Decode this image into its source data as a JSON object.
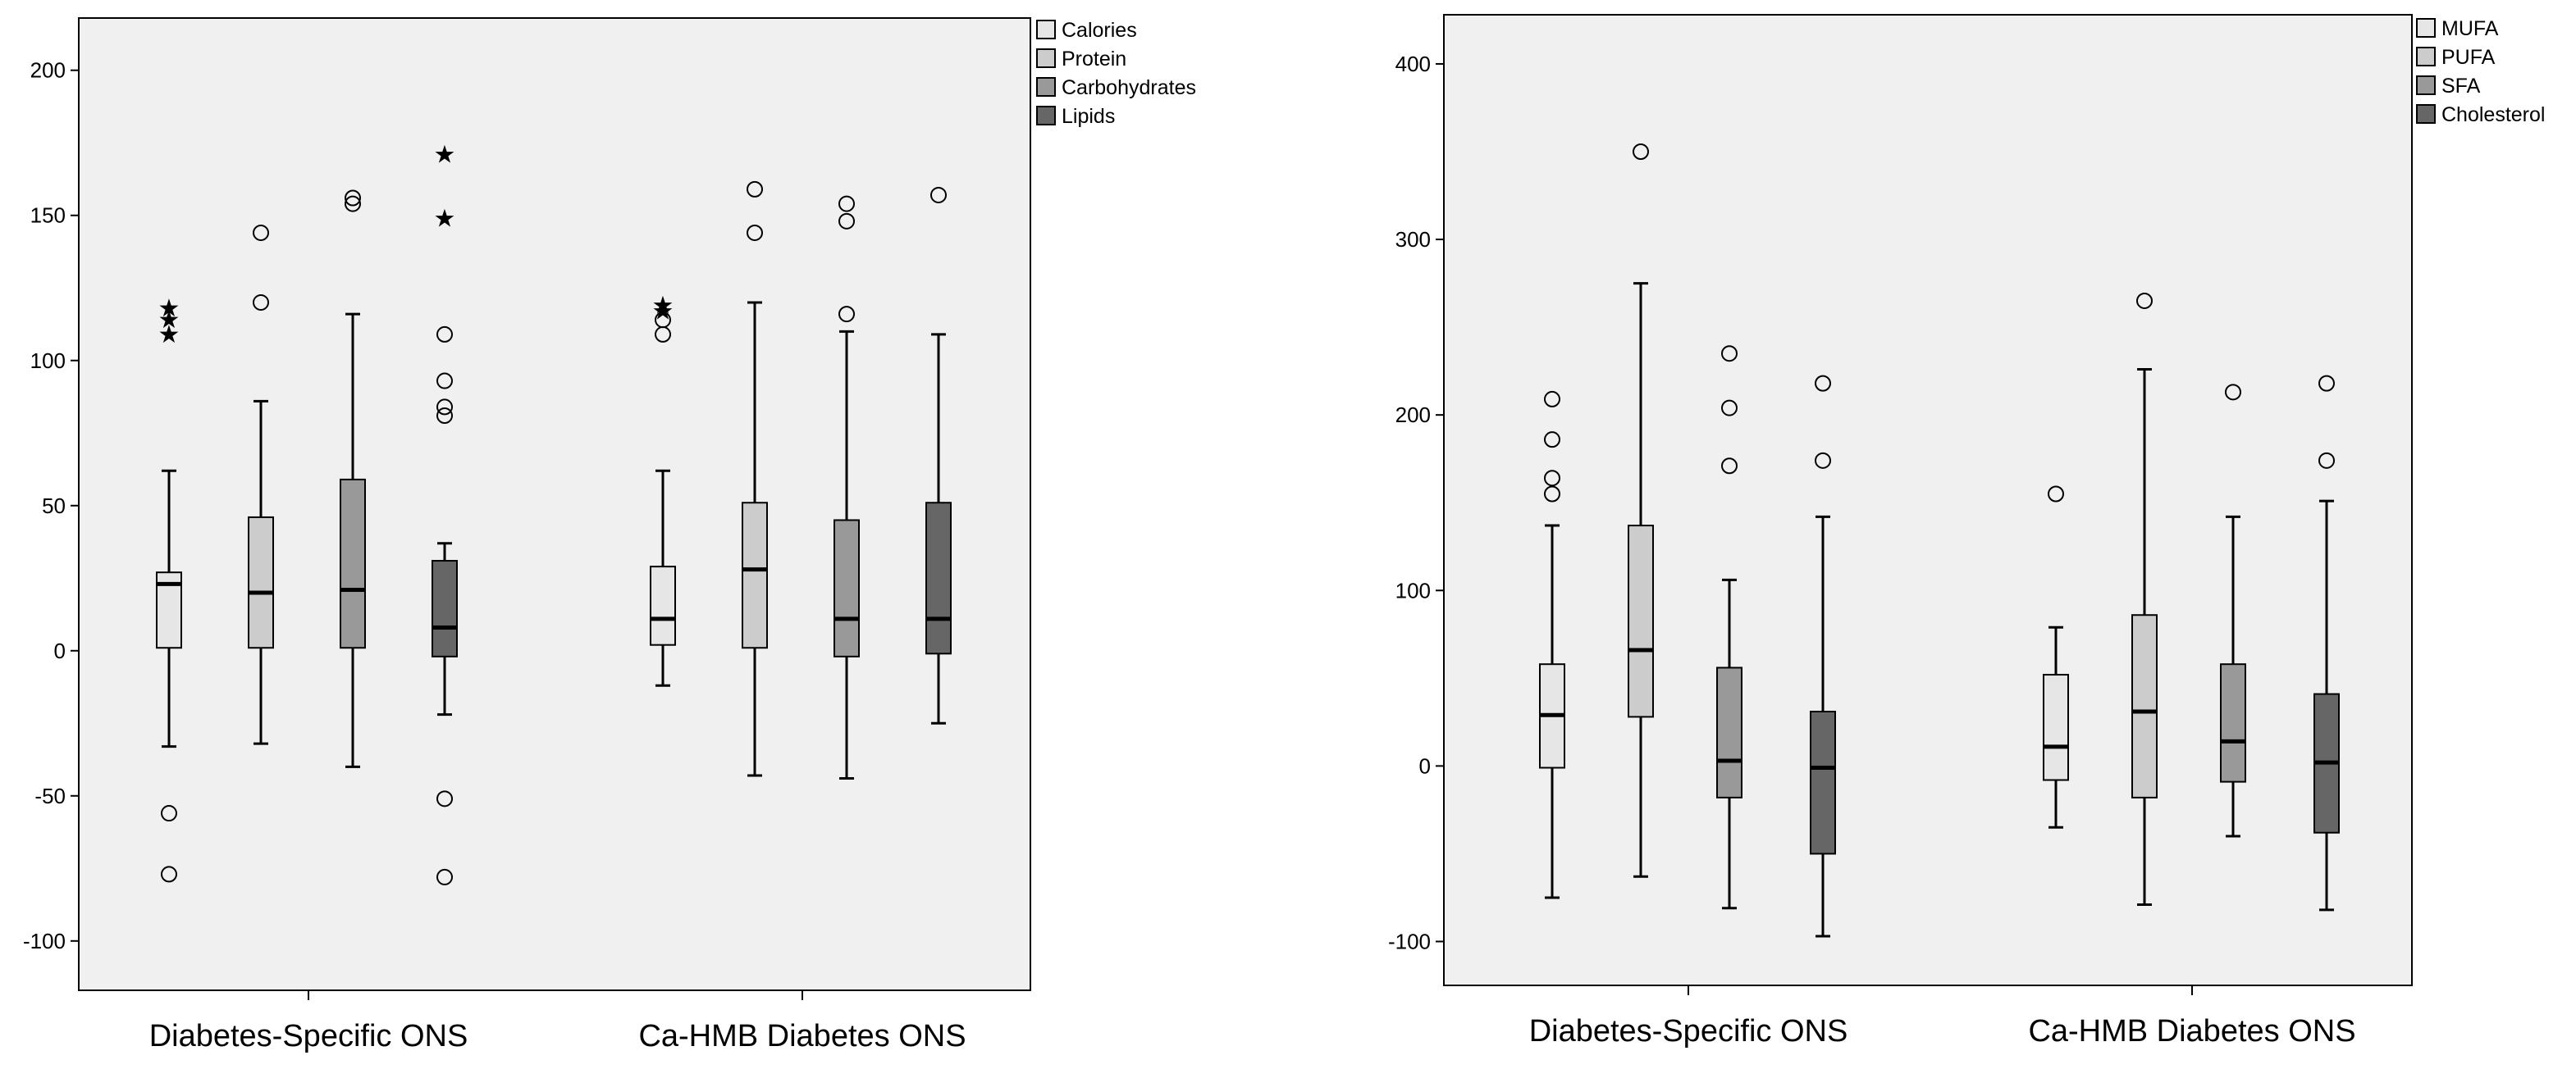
{
  "chart_data": [
    {
      "type": "boxplot",
      "title": "",
      "xlabel": "",
      "ylabel": "",
      "ylim": [
        -117,
        218
      ],
      "yticks": [
        200,
        150,
        100,
        50,
        0,
        -50,
        -100
      ],
      "ytick_labels": [
        "200",
        "150",
        "100",
        "50",
        "0",
        "-50",
        "-100"
      ],
      "categories": [
        "Diabetes-Specific ONS",
        "Ca-HMB Diabetes ONS"
      ],
      "legend": {
        "position": "top-right",
        "entries": [
          "Calories",
          "Protein",
          "Carbohydrates",
          "Lipids"
        ]
      },
      "series": [
        {
          "name": "Calories",
          "color": "#e6e6e6",
          "boxes": [
            {
              "whisker_low": -33,
              "q1": 1,
              "median": 23,
              "q3": 27,
              "whisker_high": 62,
              "outliers": [
                -56,
                -77
              ],
              "extremes": [
                118,
                114,
                109
              ]
            },
            {
              "whisker_low": -12,
              "q1": 2,
              "median": 11,
              "q3": 29,
              "whisker_high": 62,
              "outliers": [
                109,
                114
              ],
              "extremes": [
                119,
                117
              ]
            }
          ]
        },
        {
          "name": "Protein",
          "color": "#cccccc",
          "boxes": [
            {
              "whisker_low": -32,
              "q1": 1,
              "median": 20,
              "q3": 46,
              "whisker_high": 86,
              "outliers": [
                144,
                120
              ],
              "extremes": []
            },
            {
              "whisker_low": -43,
              "q1": 1,
              "median": 28,
              "q3": 51,
              "whisker_high": 120,
              "outliers": [
                159,
                144
              ],
              "extremes": []
            }
          ]
        },
        {
          "name": "Carbohydrates",
          "color": "#999999",
          "boxes": [
            {
              "whisker_low": -40,
              "q1": 1,
              "median": 21,
              "q3": 59,
              "whisker_high": 116,
              "outliers": [
                156,
                154
              ],
              "extremes": []
            },
            {
              "whisker_low": -44,
              "q1": -2,
              "median": 11,
              "q3": 45,
              "whisker_high": 110,
              "outliers": [
                154,
                148,
                116
              ],
              "extremes": []
            }
          ]
        },
        {
          "name": "Lipids",
          "color": "#666666",
          "boxes": [
            {
              "whisker_low": -22,
              "q1": -2,
              "median": 8,
              "q3": 31,
              "whisker_high": 37,
              "outliers": [
                109,
                93,
                84,
                81,
                -51,
                -78
              ],
              "extremes": [
                171,
                149
              ]
            },
            {
              "whisker_low": -25,
              "q1": -1,
              "median": 11,
              "q3": 51,
              "whisker_high": 109,
              "outliers": [
                157
              ],
              "extremes": []
            }
          ]
        }
      ]
    },
    {
      "type": "boxplot",
      "title": "",
      "xlabel": "",
      "ylabel": "",
      "ylim": [
        -125,
        428
      ],
      "yticks": [
        400,
        300,
        200,
        100,
        0,
        -100
      ],
      "ytick_labels": [
        "400",
        "300",
        "200",
        "100",
        "0",
        "-100"
      ],
      "categories": [
        "Diabetes-Specific ONS",
        "Ca-HMB Diabetes ONS"
      ],
      "legend": {
        "position": "top-right",
        "entries": [
          "MUFA",
          "PUFA",
          "SFA",
          "Cholesterol"
        ]
      },
      "series": [
        {
          "name": "MUFA",
          "color": "#e6e6e6",
          "boxes": [
            {
              "whisker_low": -75,
              "q1": -1,
              "median": 29,
              "q3": 58,
              "whisker_high": 137,
              "outliers": [
                209,
                186,
                164,
                155
              ],
              "extremes": []
            },
            {
              "whisker_low": -35,
              "q1": -8,
              "median": 11,
              "q3": 52,
              "whisker_high": 79,
              "outliers": [
                155
              ],
              "extremes": []
            }
          ]
        },
        {
          "name": "PUFA",
          "color": "#cccccc",
          "boxes": [
            {
              "whisker_low": -63,
              "q1": 28,
              "median": 66,
              "q3": 137,
              "whisker_high": 275,
              "outliers": [
                350
              ],
              "extremes": []
            },
            {
              "whisker_low": -79,
              "q1": -18,
              "median": 31,
              "q3": 86,
              "whisker_high": 226,
              "outliers": [
                265
              ],
              "extremes": []
            }
          ]
        },
        {
          "name": "SFA",
          "color": "#999999",
          "boxes": [
            {
              "whisker_low": -81,
              "q1": -18,
              "median": 3,
              "q3": 56,
              "whisker_high": 106,
              "outliers": [
                235,
                204,
                171
              ],
              "extremes": []
            },
            {
              "whisker_low": -40,
              "q1": -9,
              "median": 14,
              "q3": 58,
              "whisker_high": 142,
              "outliers": [
                213
              ],
              "extremes": []
            }
          ]
        },
        {
          "name": "Cholesterol",
          "color": "#666666",
          "boxes": [
            {
              "whisker_low": -97,
              "q1": -50,
              "median": -1,
              "q3": 31,
              "whisker_high": 142,
              "outliers": [
                218,
                174
              ],
              "extremes": []
            },
            {
              "whisker_low": -82,
              "q1": -38,
              "median": 2,
              "q3": 41,
              "whisker_high": 151,
              "outliers": [
                218,
                174
              ],
              "extremes": []
            }
          ]
        }
      ]
    }
  ]
}
